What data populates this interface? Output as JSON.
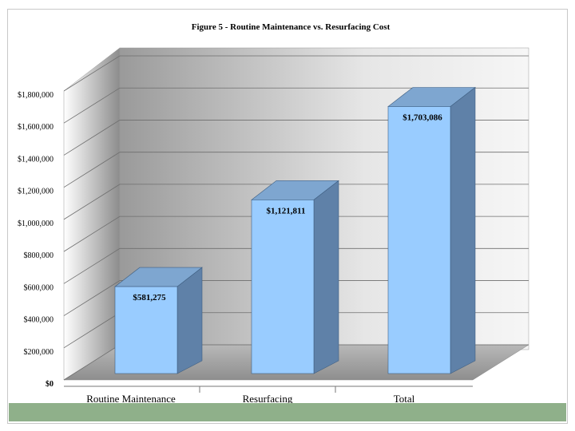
{
  "chart_data": {
    "type": "bar",
    "title": "Figure 5 - Routine Maintenance vs. Resurfacing Cost",
    "categories": [
      "Routine Maintenance",
      "Resurfacing",
      "Total"
    ],
    "values": [
      581275,
      1121811,
      1703086
    ],
    "data_labels": [
      "$581,275",
      "$1,121,811",
      "$1,703,086"
    ],
    "ylim": [
      0,
      1800000
    ],
    "y_ticks": [
      0,
      200000,
      400000,
      600000,
      800000,
      1000000,
      1200000,
      1400000,
      1600000,
      1800000
    ],
    "y_tick_labels": [
      "$0",
      "$200,000",
      "$400,000",
      "$600,000",
      "$800,000",
      "$1,000,000",
      "$1,200,000",
      "$1,400,000",
      "$1,600,000",
      "$1,800,000"
    ],
    "xlabel": "",
    "ylabel": "",
    "grid": true,
    "legend": "none",
    "style": "3d-column",
    "colors": {
      "bar_front": "#99ccff",
      "bar_side": "#5f81a8",
      "bar_top": "#7ea6d0",
      "wall_light": "#f4f4f4",
      "wall_dark": "#9a9a9a",
      "floor": "#a6a6a6",
      "footer": "#8fb08a"
    }
  }
}
